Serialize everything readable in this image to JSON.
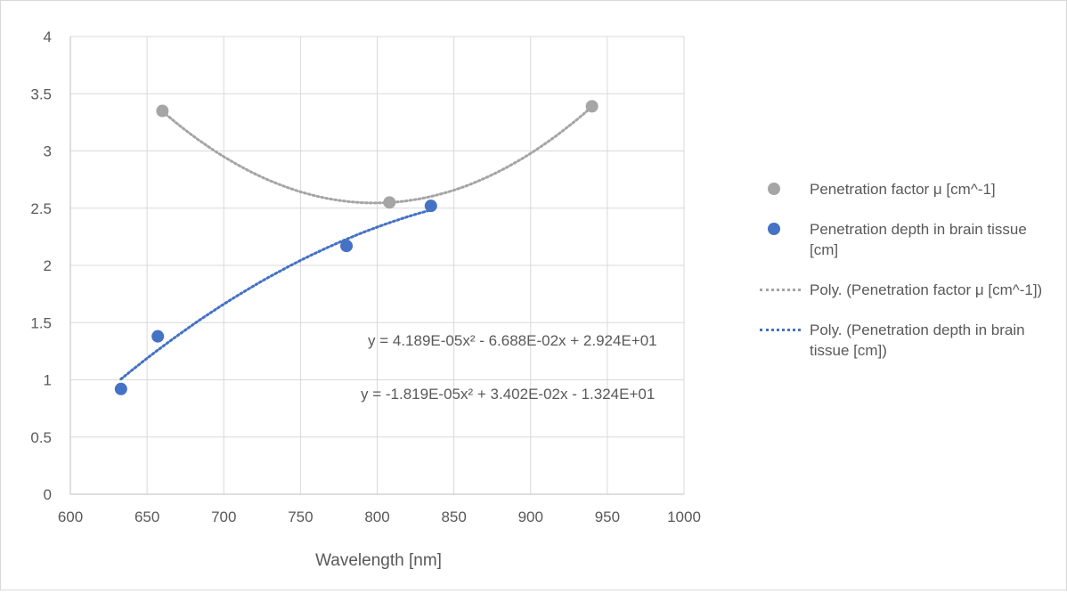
{
  "chart_data": {
    "type": "scatter",
    "xlabel": "Wavelength [nm]",
    "ylabel": "",
    "xlim": [
      600,
      1000
    ],
    "ylim": [
      0,
      4
    ],
    "xticks": [
      "600",
      "650",
      "700",
      "750",
      "800",
      "850",
      "900",
      "950",
      "1000"
    ],
    "yticks": [
      "0",
      "0.5",
      "1",
      "1.5",
      "2",
      "2.5",
      "3",
      "3.5",
      "4"
    ],
    "grid": "vertical and horizontal major gridlines",
    "legend_position": "right",
    "series": [
      {
        "name": "Penetration factor μ [cm^-1]",
        "color": "#a5a5a5",
        "x": [
          660,
          808,
          940
        ],
        "y": [
          3.35,
          2.55,
          3.39
        ],
        "trendline": {
          "name": "Poly. (Penetration factor μ [cm^-1])",
          "equation": "y = 4.189E-05x² - 6.688E-02x + 2.924E+01",
          "coefficients": [
            4.189e-05,
            -0.06688,
            29.24
          ]
        }
      },
      {
        "name": "Penetration depth in brain tissue [cm]",
        "color": "#4472c4",
        "x": [
          633,
          657,
          780,
          835
        ],
        "y": [
          0.92,
          1.38,
          2.17,
          2.52
        ],
        "trendline": {
          "name": "Poly. (Penetration depth in brain tissue [cm])",
          "equation": "y = -1.819E-05x² + 3.402E-02x - 1.324E+01",
          "coefficients": [
            -1.819e-05,
            0.03402,
            -13.24
          ]
        }
      }
    ]
  },
  "legend": {
    "items": [
      {
        "label": "Penetration factor μ [cm^-1]",
        "kind": "marker",
        "color": "#a5a5a5"
      },
      {
        "label": "Penetration depth in brain tissue [cm]",
        "kind": "marker",
        "color": "#4472c4"
      },
      {
        "label": "Poly. (Penetration factor μ [cm^-1])",
        "kind": "line",
        "color": "#a5a5a5"
      },
      {
        "label": "Poly. (Penetration depth in brain tissue [cm])",
        "kind": "line",
        "color": "#4472c4"
      }
    ]
  }
}
